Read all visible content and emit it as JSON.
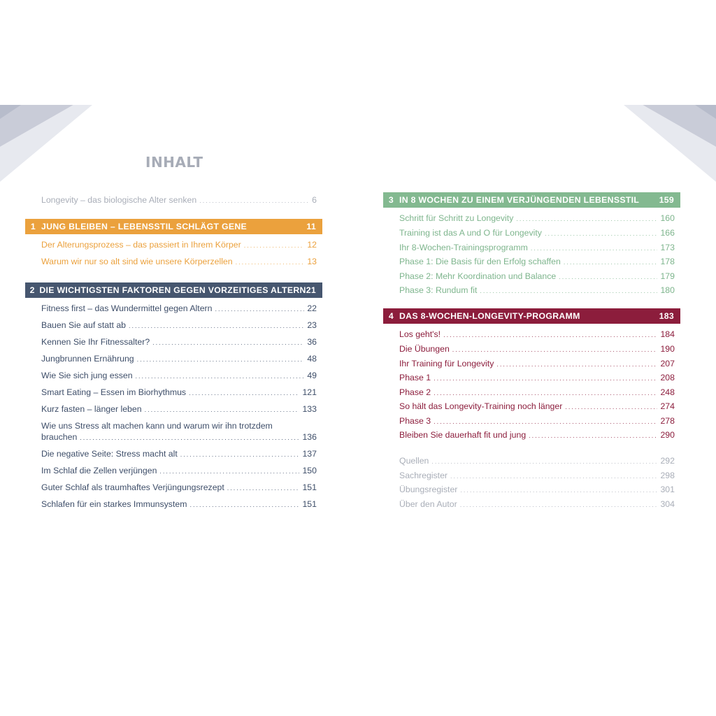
{
  "title": "INHALT",
  "intro": {
    "title": "Longevity – das biologische Alter senken",
    "page": "6"
  },
  "chapters": [
    {
      "number": "1",
      "title": "JUNG BLEIBEN – LEBENSSTIL SCHLÄGT GENE",
      "page": "11",
      "color": "#eba13d",
      "entries": [
        {
          "title": "Der Alterungsprozess – das passiert in Ihrem Körper",
          "page": "12"
        },
        {
          "title": "Warum wir nur so alt sind wie unsere Körperzellen",
          "page": "13"
        }
      ]
    },
    {
      "number": "2",
      "title": "DIE WICHTIGSTEN FAKTOREN GEGEN VORZEITIGES ALTERN",
      "page": "21",
      "color": "#46566f",
      "entries": [
        {
          "title": "Fitness first – das Wundermittel gegen Altern",
          "page": "22"
        },
        {
          "title": "Bauen Sie auf statt ab",
          "page": "23"
        },
        {
          "title": "Kennen Sie Ihr Fitnessalter?",
          "page": "36"
        },
        {
          "title": "Jungbrunnen Ernährung",
          "page": "48"
        },
        {
          "title": "Wie Sie sich jung essen",
          "page": "49"
        },
        {
          "title": "Smart Eating – Essen im Biorhythmus",
          "page": "121"
        },
        {
          "title": "Kurz fasten – länger leben",
          "page": "133"
        },
        {
          "title_line1": "Wie uns Stress alt machen kann und warum wir ihn trotzdem",
          "title_line2": "brauchen",
          "page": "136"
        },
        {
          "title": "Die negative Seite: Stress macht alt",
          "page": "137"
        },
        {
          "title": "Im Schlaf die Zellen verjüngen",
          "page": "150"
        },
        {
          "title": "Guter Schlaf als traumhaftes Verjüngungsrezept",
          "page": "151"
        },
        {
          "title": "Schlafen für ein starkes Immunsystem",
          "page": "151"
        }
      ]
    },
    {
      "number": "3",
      "title": "IN 8 WOCHEN ZU EINEM VERJÜNGENDEN LEBENSSTIL",
      "page": "159",
      "color": "#83b990",
      "entries": [
        {
          "title": "Schritt für Schritt zu Longevity",
          "page": "160"
        },
        {
          "title": "Training ist das A und O für Longevity",
          "page": "166"
        },
        {
          "title": "Ihr 8-Wochen-Trainingsprogramm",
          "page": "173"
        },
        {
          "title": "Phase 1: Die Basis für den Erfolg schaffen",
          "page": "178"
        },
        {
          "title": "Phase 2: Mehr Koordination und Balance",
          "page": "179"
        },
        {
          "title": "Phase 3: Rundum fit",
          "page": "180"
        }
      ]
    },
    {
      "number": "4",
      "title": "DAS 8-WOCHEN-LONGEVITY-PROGRAMM",
      "page": "183",
      "color": "#8c1d3c",
      "entries": [
        {
          "title": "Los geht's!",
          "page": "184"
        },
        {
          "title": "Die Übungen",
          "page": "190"
        },
        {
          "title": "Ihr Training für Longevity",
          "page": "207"
        },
        {
          "title": "Phase 1",
          "page": "208"
        },
        {
          "title": "Phase 2",
          "page": "248"
        },
        {
          "title": "So hält das Longevity-Training noch länger",
          "page": "274"
        },
        {
          "title": "Phase 3",
          "page": "278"
        },
        {
          "title": "Bleiben Sie dauerhaft fit und jung",
          "page": "290"
        }
      ]
    }
  ],
  "appendix": [
    {
      "title": "Quellen",
      "page": "292"
    },
    {
      "title": "Sachregister",
      "page": "298"
    },
    {
      "title": "Übungsregister",
      "page": "301"
    },
    {
      "title": "Über den Autor",
      "page": "304"
    }
  ]
}
